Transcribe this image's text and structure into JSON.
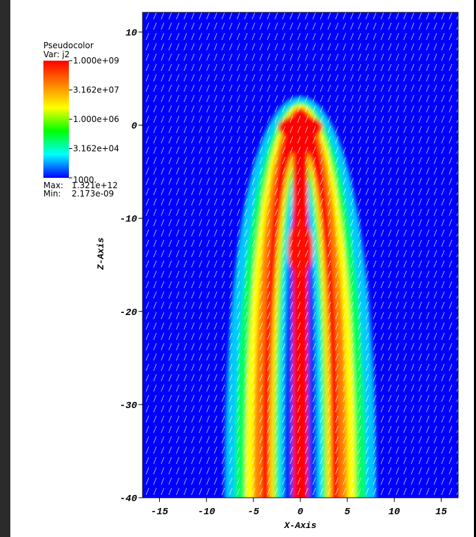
{
  "chart_data": {
    "type": "pseudocolor",
    "legend_title": "Pseudocolor",
    "variable": "Var: j2",
    "colorbar": {
      "log": true,
      "lim": [
        1000,
        1000000000
      ],
      "ticks": [
        {
          "value": 1000000000,
          "label": "1.000e+09"
        },
        {
          "value": 31620000,
          "label": "3.162e+07"
        },
        {
          "value": 1000000,
          "label": "1.000e+06"
        },
        {
          "value": 31620,
          "label": "3.162e+04"
        },
        {
          "value": 1000,
          "label": "1000."
        }
      ],
      "colors": [
        "#ff0000",
        "#ff8000",
        "#ffff00",
        "#00ff00",
        "#00ffff",
        "#0000ff"
      ]
    },
    "max_caption": "Max:",
    "max": {
      "value": 1321000000000,
      "label": "1.321e+12"
    },
    "min_caption": "Min:",
    "min": {
      "value": 2.173e-09,
      "label": "2.173e-09"
    },
    "xlabel": "X-Axis",
    "ylabel": "Z-Axis",
    "xlim": [
      -16.8,
      16.8
    ],
    "ylim": [
      -40,
      12.1
    ],
    "xticks": [
      -15,
      -10,
      -5,
      0,
      5,
      10,
      15
    ],
    "yticks": [
      -40,
      -30,
      -20,
      -10,
      0,
      10
    ]
  }
}
